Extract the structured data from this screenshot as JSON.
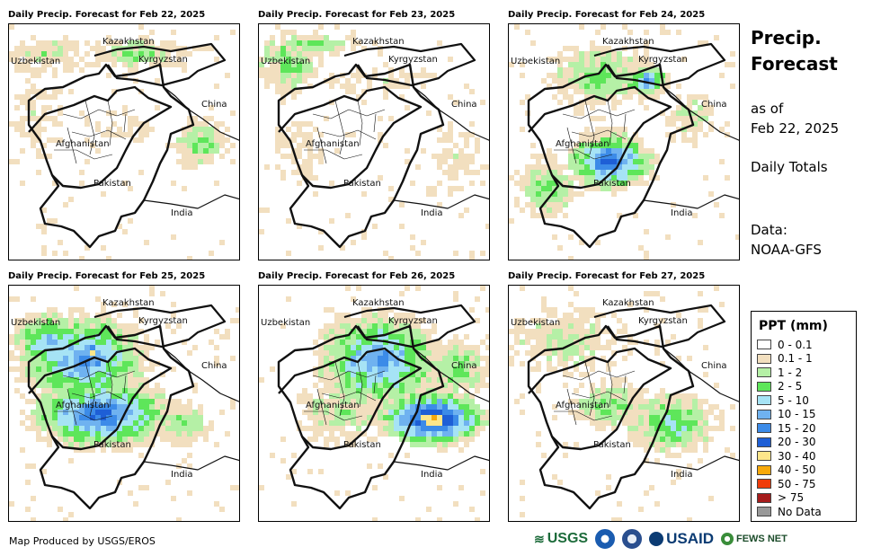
{
  "panels": [
    {
      "title": "Daily Precip. Forecast for Feb 22, 2025",
      "intensity": 0
    },
    {
      "title": "Daily Precip. Forecast for Feb 23, 2025",
      "intensity": 1
    },
    {
      "title": "Daily Precip. Forecast for Feb 24, 2025",
      "intensity": 2
    },
    {
      "title": "Daily Precip. Forecast for Feb 25, 2025",
      "intensity": 3
    },
    {
      "title": "Daily Precip. Forecast for Feb 26, 2025",
      "intensity": 4
    },
    {
      "title": "Daily Precip. Forecast for Feb 27, 2025",
      "intensity": 5
    }
  ],
  "labels": {
    "kazakhstan": "Kazakhstan",
    "uzbekistan": "Uzbekistan",
    "kyrgyzstan": "Kyrgyzstan",
    "china": "China",
    "afghanistan": "Afghanistan",
    "pakistan": "Pakistan",
    "india": "India"
  },
  "side": {
    "heading_line1": "Precip.",
    "heading_line2": "Forecast",
    "asof_line1": "as of",
    "asof_line2": "Feb 22, 2025",
    "totals": "Daily Totals",
    "data_line1": "Data:",
    "data_line2": "NOAA-GFS"
  },
  "legend": {
    "title": "PPT (mm)",
    "items": [
      {
        "label": "0 - 0.1",
        "color": "#ffffff"
      },
      {
        "label": "0.1 - 1",
        "color": "#f2dfbf"
      },
      {
        "label": "1 - 2",
        "color": "#b5f0a6"
      },
      {
        "label": "2 - 5",
        "color": "#5ee65a"
      },
      {
        "label": "5 - 10",
        "color": "#a6e3f5"
      },
      {
        "label": "10 - 15",
        "color": "#6fb2f0"
      },
      {
        "label": "15 - 20",
        "color": "#3c8be8"
      },
      {
        "label": "20 - 30",
        "color": "#1e5fd6"
      },
      {
        "label": "30 - 40",
        "color": "#fde68a"
      },
      {
        "label": "40 - 50",
        "color": "#f8a90a"
      },
      {
        "label": "50 - 75",
        "color": "#f03c0a"
      },
      {
        "label": "> 75",
        "color": "#a61c1c"
      },
      {
        "label": "No Data",
        "color": "#999999"
      }
    ]
  },
  "credit": "Map Produced by USGS/EROS",
  "logos": {
    "usgs": "USGS",
    "usaid": "USAID",
    "fews": "FEWS NET"
  }
}
